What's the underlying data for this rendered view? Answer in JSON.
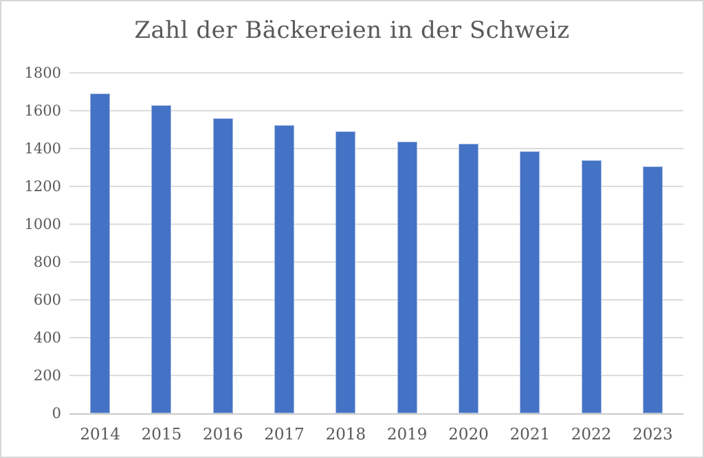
{
  "chart_data": {
    "type": "bar",
    "title": "Zahl der Bäckereien in der Schweiz",
    "categories": [
      "2014",
      "2015",
      "2016",
      "2017",
      "2018",
      "2019",
      "2020",
      "2021",
      "2022",
      "2023"
    ],
    "values": [
      1690,
      1630,
      1560,
      1525,
      1490,
      1435,
      1425,
      1385,
      1340,
      1305
    ],
    "xlabel": "",
    "ylabel": "",
    "ylim": [
      0,
      1800
    ],
    "ytick_step": 200,
    "ytick_labels": [
      "0",
      "200",
      "400",
      "600",
      "800",
      "1000",
      "1200",
      "1400",
      "1600",
      "1800"
    ],
    "grid": "horizontal",
    "legend": "none",
    "series_name": "Zahl der Bäckereien"
  },
  "colors": {
    "bar_fill": "#4472C4",
    "bar_border": "#A3B9E4",
    "gridline": "#DCDCDC",
    "axis_line": "#C9C9C9",
    "text": "#595959",
    "background": "#FFFFFF",
    "frame_border": "#D6D6D6"
  }
}
